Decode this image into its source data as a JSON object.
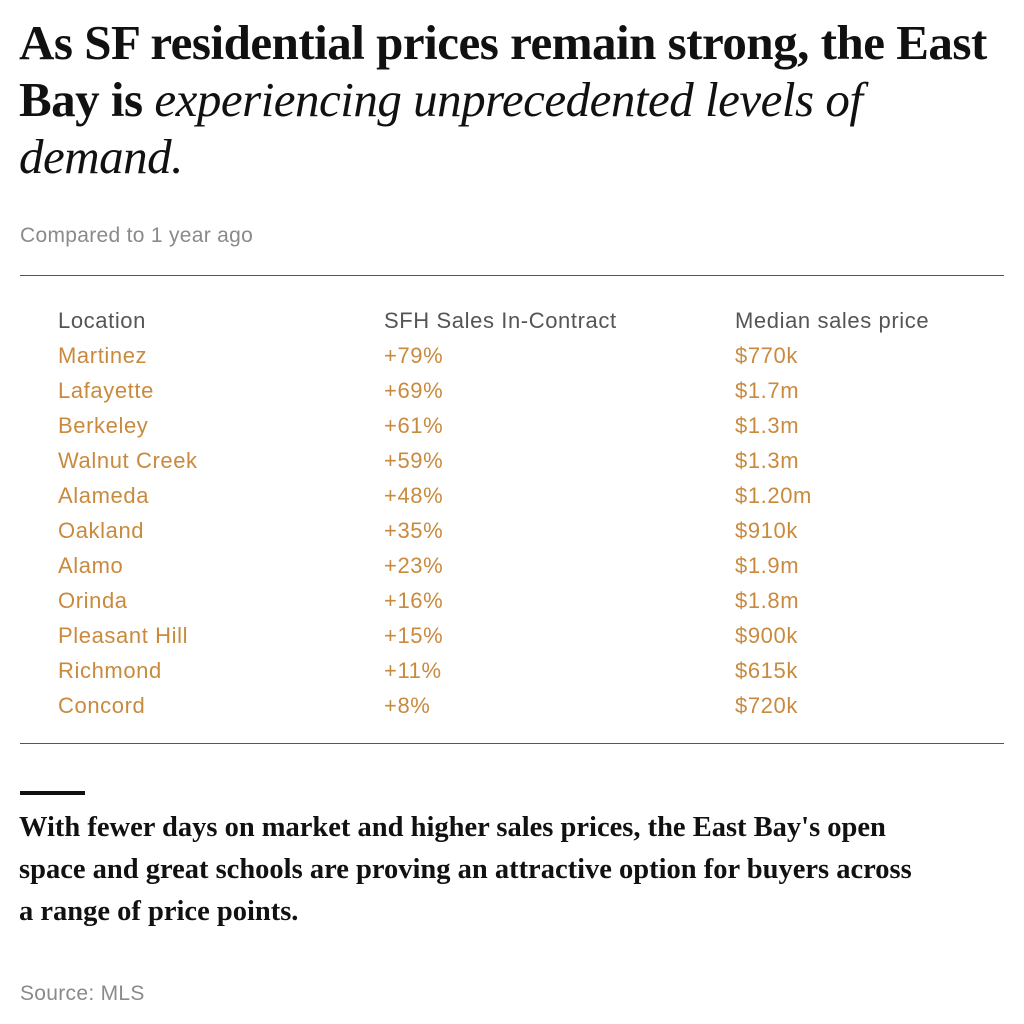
{
  "title": {
    "bold": "As SF residential prices remain strong, the East Bay is",
    "italic": "experiencing unprecedented levels of demand."
  },
  "subtitle": "Compared to 1 year ago",
  "table": {
    "headers": [
      "Location",
      "SFH Sales In-Contract",
      "Median sales price"
    ],
    "rows": [
      [
        "Martinez",
        "+79%",
        "$770k"
      ],
      [
        "Lafayette",
        "+69%",
        "$1.7m"
      ],
      [
        "Berkeley",
        "+61%",
        "$1.3m"
      ],
      [
        "Walnut Creek",
        "+59%",
        "$1.3m"
      ],
      [
        "Alameda",
        "+48%",
        "$1.20m"
      ],
      [
        "Oakland",
        "+35%",
        "$910k"
      ],
      [
        "Alamo",
        "+23%",
        "$1.9m"
      ],
      [
        "Orinda",
        "+16%",
        "$1.8m"
      ],
      [
        "Pleasant Hill",
        "+15%",
        "$900k"
      ],
      [
        "Richmond",
        "+11%",
        "$615k"
      ],
      [
        "Concord",
        "+8%",
        "$720k"
      ]
    ]
  },
  "summary": "With fewer days on market and higher sales prices, the East Bay's open space and great schools are proving an attractive option for buyers across a range of price points.",
  "source": "Source: MLS",
  "colors": {
    "accent": "#c98a3e",
    "header": "#555555",
    "muted": "#8a8a8a",
    "text": "#111111"
  }
}
